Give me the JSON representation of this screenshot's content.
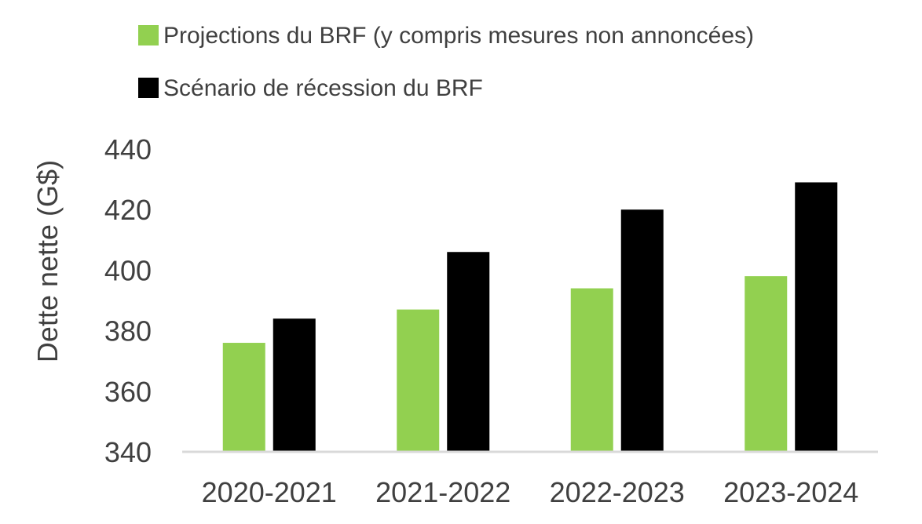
{
  "chart_data": {
    "type": "bar",
    "title": "",
    "xlabel": "",
    "ylabel": "Dette nette (G$)",
    "categories": [
      "2020-2021",
      "2021-2022",
      "2022-2023",
      "2023-2024"
    ],
    "ylim": [
      340,
      440
    ],
    "yticks": [
      340,
      360,
      380,
      400,
      420,
      440
    ],
    "grid": false,
    "legend_position": "top",
    "series": [
      {
        "name": "Projections du BRF (y compris mesures non annoncées)",
        "values": [
          376,
          387,
          394,
          398
        ],
        "color": "#92D050"
      },
      {
        "name": "Scénario de récession du BRF",
        "values": [
          384,
          406,
          420,
          429
        ],
        "color": "#000000"
      }
    ],
    "axis_color": "#D9D9D9",
    "text_color": "#404040"
  }
}
